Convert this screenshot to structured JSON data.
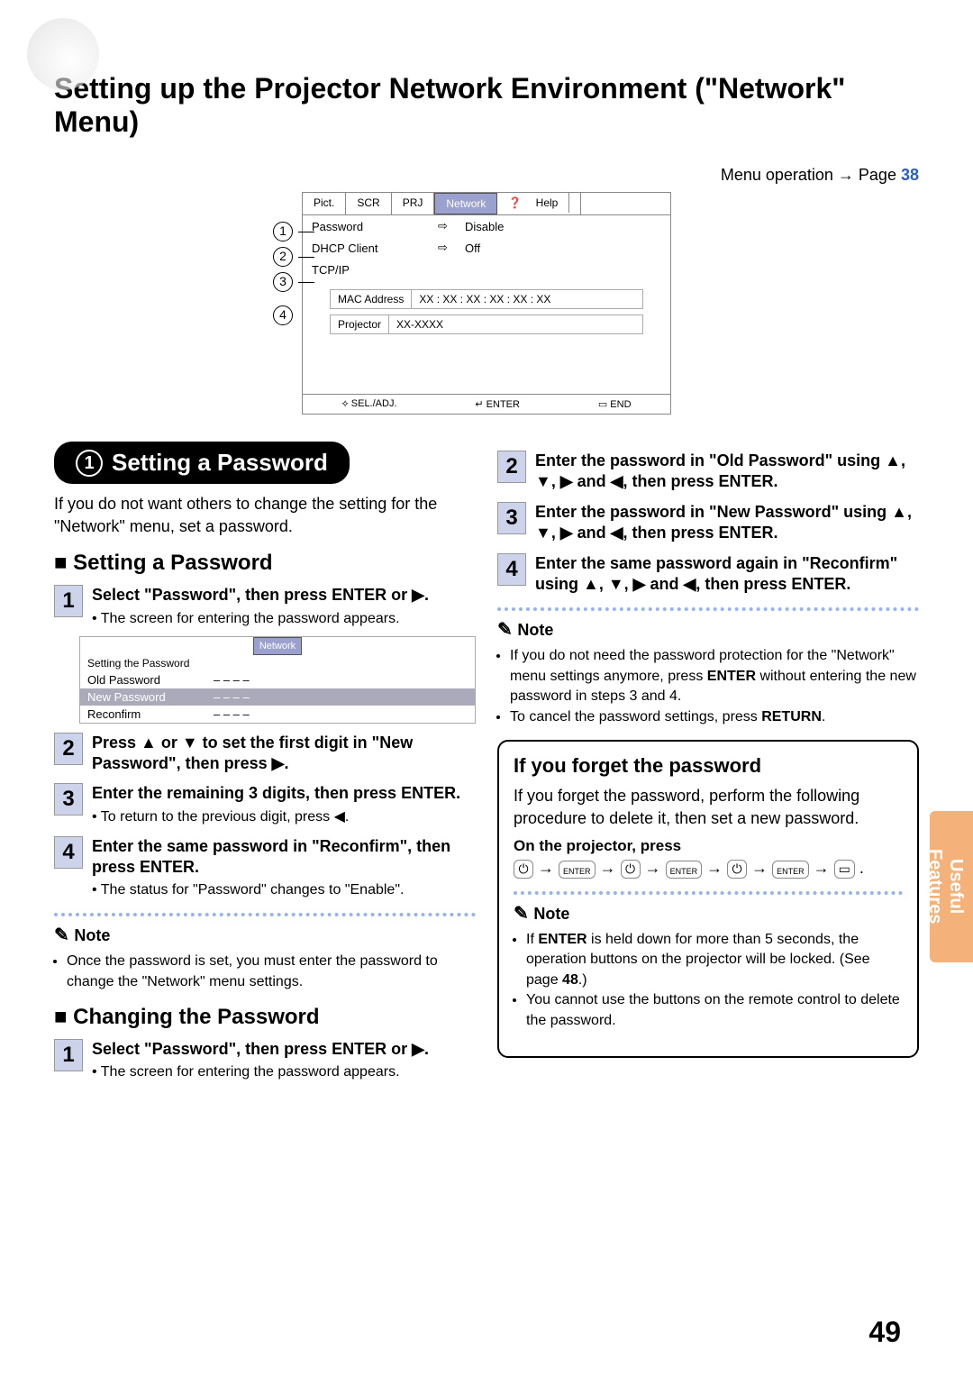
{
  "title": "Setting up the Projector Network Environment (\"Network\" Menu)",
  "side_tab": "Useful Features",
  "menu_op_prefix": "Menu operation → Page ",
  "menu_op_page": "38",
  "netmenu": {
    "tabs": [
      "Pict.",
      "SCR",
      "PRJ",
      "Network",
      "Help"
    ],
    "rows": [
      {
        "n": "1",
        "label": "Password",
        "val": "Disable"
      },
      {
        "n": "2",
        "label": "DHCP Client",
        "val": "Off"
      },
      {
        "n": "3",
        "label": "TCP/IP",
        "val": ""
      }
    ],
    "mac_label": "MAC Address",
    "mac_val": "XX : XX : XX : XX : XX : XX",
    "proj_label": "Projector",
    "proj_val": "XX-XXXX",
    "foot": [
      "⟡ SEL./ADJ.",
      "↵ ENTER",
      "▭ END"
    ]
  },
  "pill": {
    "num": "1",
    "text": "Setting a Password"
  },
  "intro": "If you do not want others to change the setting for the \"Network\" menu, set a password.",
  "h_setting": "Setting a Password",
  "left_steps": [
    {
      "n": "1",
      "bold": "Select \"Password\", then press ENTER or ▶.",
      "sub": "The screen for entering the password appears."
    },
    {
      "n": "2",
      "bold": "Press ▲ or ▼ to set the first digit in \"New Password\", then press ▶."
    },
    {
      "n": "3",
      "bold": "Enter the remaining 3 digits, then press ENTER.",
      "sub": "To return to the previous digit, press ◀."
    },
    {
      "n": "4",
      "bold": "Enter the same password in \"Reconfirm\", then press ENTER.",
      "sub": "The status for \"Password\" changes to \"Enable\"."
    }
  ],
  "pwdbox": {
    "tab": "Network",
    "title": "Setting the Password",
    "rows": [
      {
        "l": "Old Password",
        "v": "– – – –"
      },
      {
        "l": "New Password",
        "v": "– – – –",
        "hi": true
      },
      {
        "l": "Reconfirm",
        "v": "– – – –"
      }
    ]
  },
  "note1": {
    "title": "Note",
    "items": [
      "Once the password is set, you must enter the password to change the \"Network\" menu settings."
    ]
  },
  "h_changing": "Changing the Password",
  "change_steps": [
    {
      "n": "1",
      "bold": "Select \"Password\", then press ENTER or ▶.",
      "sub": "The screen for entering the password appears."
    }
  ],
  "right_steps": [
    {
      "n": "2",
      "bold": "Enter the password in \"Old Password\" using ▲, ▼, ▶ and ◀, then press ENTER."
    },
    {
      "n": "3",
      "bold": "Enter the password in \"New Password\" using ▲, ▼, ▶ and ◀, then press ENTER."
    },
    {
      "n": "4",
      "bold": "Enter the same password again in \"Reconfirm\" using ▲, ▼, ▶ and ◀, then press ENTER."
    }
  ],
  "note2": {
    "title": "Note",
    "items": [
      "If you do not need the password protection for the \"Network\" menu settings anymore, press ENTER without entering the new password in steps 3 and 4.",
      "To cancel the password settings, press RETURN."
    ]
  },
  "forget": {
    "title": "If you forget the password",
    "text": "If you forget the password, perform the following procedure to delete it, then set a new password.",
    "on": "On the projector, press",
    "seq": [
      "⏻",
      "→",
      "ENTER",
      "→",
      "⏻",
      "→",
      "ENTER",
      "→",
      "⏻",
      "→",
      "ENTER",
      "→",
      "▭",
      "."
    ]
  },
  "note3": {
    "title": "Note",
    "items": [
      "If ENTER is held down for more than 5 seconds, the operation buttons on the projector will be locked. (See page 48.)",
      "You cannot use the buttons on the remote control to delete the password."
    ]
  },
  "page_num": "49"
}
